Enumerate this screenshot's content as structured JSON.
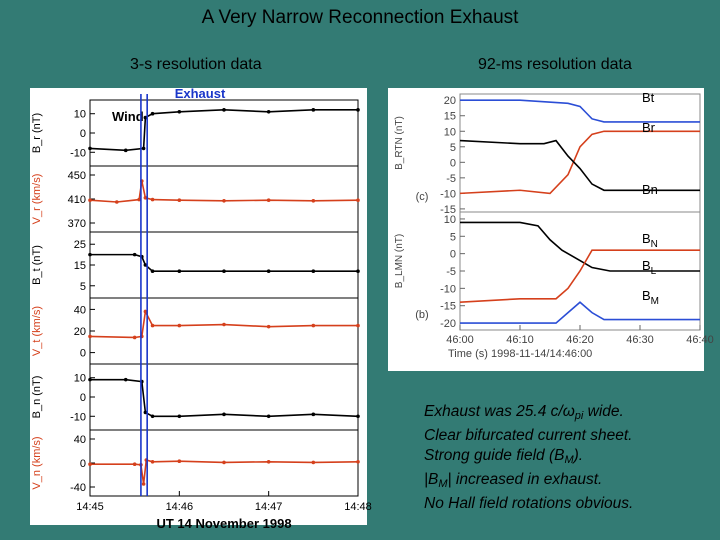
{
  "slide": {
    "title": "A Very Narrow Reconnection Exhaust",
    "left_caption": "3-s resolution data",
    "right_caption": "92-ms resolution data"
  },
  "notes": {
    "line1_pre": "Exhaust was 25.4 c/",
    "line1_sym": "ω",
    "line1_sub": "pi",
    "line1_post": " wide.",
    "line2": "Clear bifurcated current sheet.",
    "line3_pre": "Strong guide field (B",
    "line3_sub": "M",
    "line3_post": ").",
    "line4_pre": "|B",
    "line4_sub": "M",
    "line4_post": "| increased in exhaust.",
    "line5": "No Hall field rotations obvious."
  },
  "chart_data": [
    {
      "type": "line",
      "title": "Exhaust",
      "annotation": "Wind",
      "xlabel": "UT 14 November 1998",
      "x_ticks": [
        "14:45",
        "14:46",
        "14:47",
        "14:48"
      ],
      "exhaust_marker": "Exhaust",
      "panels": [
        {
          "ylabel": "B_r (nT)",
          "yticks": [
            "10",
            "0",
            "-10"
          ],
          "color": "#000000",
          "x": [
            0,
            0.4,
            0.6,
            0.62,
            0.7,
            1.0,
            1.5,
            2.0,
            2.5,
            3.0
          ],
          "y": [
            -8,
            -9,
            -8,
            8,
            10,
            11,
            12,
            11,
            12,
            12
          ]
        },
        {
          "ylabel": "V_r (km/s)",
          "yticks": [
            "450",
            "410",
            "370"
          ],
          "color": "#d5401c",
          "x": [
            0,
            0.3,
            0.55,
            0.58,
            0.62,
            0.7,
            1.0,
            1.5,
            2.0,
            2.5,
            3.0
          ],
          "y": [
            408,
            405,
            409,
            440,
            412,
            409,
            408,
            407,
            408,
            407,
            408
          ]
        },
        {
          "ylabel": "B_t (nT)",
          "yticks": [
            "25",
            "15",
            "5"
          ],
          "color": "#000000",
          "x": [
            0,
            0.5,
            0.58,
            0.62,
            0.7,
            1.0,
            1.5,
            2.0,
            2.5,
            3.0
          ],
          "y": [
            20,
            20,
            19,
            15,
            12,
            12,
            12,
            12,
            12,
            12
          ]
        },
        {
          "ylabel": "V_t (km/s)",
          "yticks": [
            "40",
            "20",
            "0"
          ],
          "color": "#d5401c",
          "x": [
            0,
            0.5,
            0.58,
            0.62,
            0.7,
            1.0,
            1.5,
            2.0,
            2.5,
            3.0
          ],
          "y": [
            15,
            14,
            15,
            38,
            25,
            25,
            26,
            24,
            25,
            25
          ]
        },
        {
          "ylabel": "B_n (nT)",
          "yticks": [
            "10",
            "0",
            "-10"
          ],
          "color": "#000000",
          "x": [
            0,
            0.4,
            0.58,
            0.62,
            0.7,
            1.0,
            1.5,
            2.0,
            2.5,
            3.0
          ],
          "y": [
            9,
            9,
            8,
            -8,
            -10,
            -10,
            -9,
            -10,
            -9,
            -10
          ]
        },
        {
          "ylabel": "V_n (km/s)",
          "yticks": [
            "40",
            "0",
            "-40"
          ],
          "color": "#d5401c",
          "x": [
            0,
            0.5,
            0.57,
            0.6,
            0.63,
            0.7,
            1.0,
            1.5,
            2.0,
            2.5,
            3.0
          ],
          "y": [
            -2,
            -2,
            -3,
            -35,
            5,
            2,
            3,
            1,
            2,
            1,
            2
          ]
        }
      ]
    },
    {
      "type": "line",
      "xlabel": "Time (s) 1998-11-14/14:46:00",
      "x_ticks": [
        "46:00",
        "46:10",
        "46:20",
        "46:30",
        "46:40"
      ],
      "panels": [
        {
          "ylabel": "B_RTN (nT)",
          "panel_label": "(c)",
          "yticks": [
            "20",
            "15",
            "10",
            "5",
            "0",
            "-5",
            "-10",
            "-15"
          ],
          "series": [
            {
              "name": "Bt",
              "color": "#2b4ed6",
              "x": [
                0,
                10,
                18,
                20,
                21,
                22,
                24,
                30,
                40
              ],
              "y": [
                20,
                20,
                19,
                18,
                16,
                14,
                13,
                13,
                13
              ]
            },
            {
              "name": "Br",
              "color": "#d5401c",
              "x": [
                0,
                10,
                15,
                18,
                20,
                22,
                24,
                30,
                40
              ],
              "y": [
                -10,
                -9,
                -10,
                -4,
                5,
                9,
                10,
                10,
                10
              ]
            },
            {
              "name": "Bn",
              "color": "#000000",
              "x": [
                0,
                10,
                14,
                16,
                18,
                20,
                22,
                24,
                30,
                40
              ],
              "y": [
                7,
                6,
                6,
                7,
                2,
                -2,
                -7,
                -9,
                -9,
                -9
              ]
            }
          ]
        },
        {
          "ylabel": "B_LMN (nT)",
          "panel_label": "(b)",
          "yticks": [
            "10",
            "5",
            "0",
            "-5",
            "-10",
            "-15",
            "-20"
          ],
          "series": [
            {
              "name": "BN",
              "color": "#000000",
              "x": [
                0,
                10,
                13,
                15,
                17,
                20,
                22,
                25,
                30,
                40
              ],
              "y": [
                9,
                9,
                8,
                4,
                1,
                -2,
                -4,
                -5,
                -5,
                -5
              ]
            },
            {
              "name": "BL",
              "color": "#d5401c",
              "x": [
                0,
                10,
                16,
                18,
                20,
                22,
                24,
                30,
                40
              ],
              "y": [
                -14,
                -13,
                -13,
                -10,
                -5,
                1,
                1,
                1,
                1
              ]
            },
            {
              "name": "BM",
              "color": "#2b4ed6",
              "x": [
                0,
                10,
                16,
                18,
                20,
                22,
                24,
                30,
                40
              ],
              "y": [
                -20,
                -20,
                -20,
                -17,
                -14,
                -17,
                -19,
                -19,
                -19
              ]
            }
          ]
        }
      ]
    }
  ]
}
